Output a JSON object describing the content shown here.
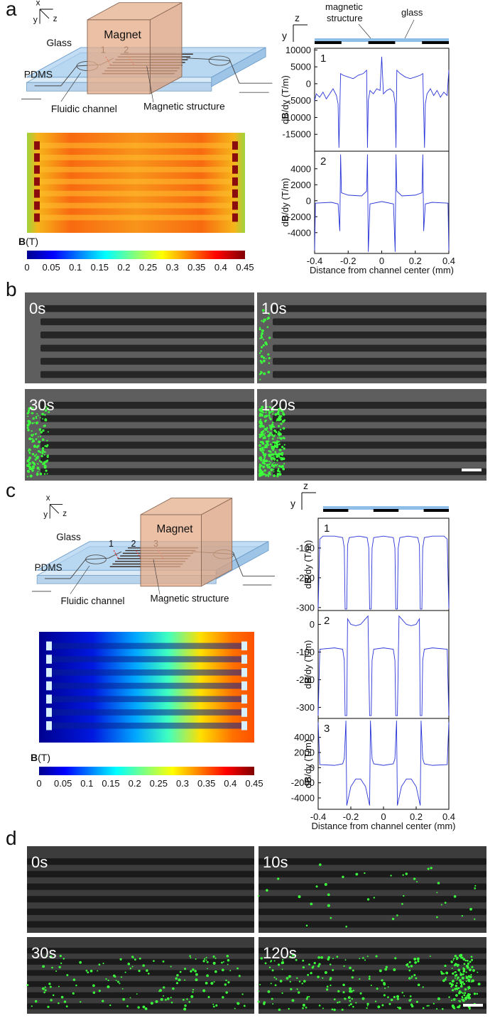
{
  "panel_labels": [
    "a",
    "b",
    "c",
    "d"
  ],
  "schematics": [
    {
      "axes": [
        "x",
        "y",
        "z"
      ],
      "labels": [
        "Magnet",
        "Glass",
        "PDMS",
        "Fluidic channel",
        "Magnetic structure"
      ],
      "points": [
        "1",
        "2"
      ]
    },
    {
      "axes": [
        "x",
        "y",
        "z"
      ],
      "labels": [
        "Magnet",
        "Glass",
        "PDMS",
        "Fluidic channel",
        "Magnetic structure"
      ],
      "points": [
        "1",
        "2",
        "3"
      ]
    }
  ],
  "colorbars": [
    {
      "label": [
        "B",
        "(T)"
      ],
      "range": [
        0,
        0.45
      ],
      "ticks": [
        0,
        0.05,
        0.1,
        0.15,
        0.2,
        0.25,
        0.3,
        0.35,
        0.4,
        0.45
      ]
    },
    {
      "label": [
        "B",
        "(T)"
      ],
      "range": [
        0,
        0.45
      ],
      "ticks": [
        0,
        0.05,
        0.1,
        0.15,
        0.2,
        0.25,
        0.3,
        0.35,
        0.4,
        0.45
      ]
    }
  ],
  "strip_legends": [
    {
      "axes": [
        "z",
        "y"
      ],
      "magnetic_structure": [
        "magnetic",
        "structure"
      ],
      "glass": "glass"
    },
    {
      "axes": [
        "z",
        "y"
      ]
    }
  ],
  "micrographs": [
    {
      "times": [
        "0s",
        "10s",
        "30s",
        "120s"
      ]
    },
    {
      "times": [
        "0s",
        "10s",
        "30s",
        "120s"
      ]
    }
  ],
  "chart_data": [
    {
      "type": "line",
      "label": "1",
      "x": [
        -0.4,
        -0.39,
        -0.37,
        -0.35,
        -0.33,
        -0.31,
        -0.29,
        -0.27,
        -0.26,
        -0.255,
        -0.25,
        -0.245,
        -0.23,
        -0.2,
        -0.17,
        -0.14,
        -0.11,
        -0.09,
        -0.085,
        -0.08,
        -0.07,
        -0.05,
        -0.03,
        -0.01,
        0,
        0.01,
        0.03,
        0.05,
        0.07,
        0.08,
        0.085,
        0.09,
        0.11,
        0.14,
        0.17,
        0.2,
        0.23,
        0.245,
        0.25,
        0.255,
        0.26,
        0.27,
        0.29,
        0.31,
        0.33,
        0.35,
        0.37,
        0.39,
        0.4
      ],
      "series": [
        {
          "color": "#2a35d8",
          "values": [
            -5000,
            -3000,
            -4000,
            -2500,
            -4500,
            -3000,
            -1500,
            -3500,
            -6000,
            -19000,
            -8000,
            3000,
            2500,
            2000,
            1500,
            2500,
            3000,
            4000,
            -19000,
            -5000,
            -2000,
            -3000,
            -1500,
            -2000,
            8000,
            -3000,
            -2000,
            -1500,
            -2500,
            -6000,
            -19000,
            4000,
            3000,
            2000,
            1500,
            2000,
            2500,
            3000,
            -8000,
            -19000,
            -6000,
            -3000,
            -1500,
            -3500,
            -2000,
            -4000,
            -2500,
            -3500,
            4000
          ]
        }
      ],
      "xlim": [
        -0.4,
        0.4
      ],
      "ylim": [
        -20000,
        10500
      ],
      "yticks": [
        10000,
        5000,
        0,
        -5000,
        -10000,
        -15000
      ],
      "ylabel": [
        "d",
        "B",
        "/dy (T/m)"
      ]
    },
    {
      "type": "line",
      "label": "2",
      "x": [
        -0.4,
        -0.395,
        -0.3,
        -0.26,
        -0.25,
        -0.245,
        -0.24,
        -0.2,
        -0.12,
        -0.09,
        -0.085,
        -0.08,
        -0.07,
        0,
        0.07,
        0.08,
        0.085,
        0.09,
        0.12,
        0.2,
        0.24,
        0.245,
        0.25,
        0.26,
        0.3,
        0.395,
        0.4
      ],
      "series": [
        {
          "color": "#2a35d8",
          "values": [
            -6400,
            -300,
            -200,
            -400,
            -3800,
            5800,
            1000,
            700,
            600,
            1200,
            5800,
            -6400,
            -400,
            -100,
            -400,
            -6400,
            5800,
            1200,
            600,
            700,
            1000,
            5800,
            -3800,
            -400,
            -200,
            -300,
            -6400
          ]
        }
      ],
      "xlim": [
        -0.4,
        0.4
      ],
      "ylim": [
        -6600,
        6200
      ],
      "yticks": [
        4000,
        2000,
        0,
        -2000,
        -4000
      ],
      "ylabel": [
        "d",
        "B",
        "/dy (T/m)"
      ],
      "xticks": [
        -0.4,
        -0.2,
        0,
        0.2,
        0.4
      ],
      "xlabel": "Distance from channel center (mm)"
    },
    {
      "type": "line",
      "label": "1",
      "x": [
        -0.4,
        -0.39,
        -0.37,
        -0.3,
        -0.25,
        -0.24,
        -0.235,
        -0.225,
        -0.22,
        -0.21,
        -0.15,
        -0.1,
        -0.09,
        -0.085,
        -0.075,
        -0.07,
        -0.06,
        0,
        0.06,
        0.07,
        0.075,
        0.085,
        0.09,
        0.1,
        0.15,
        0.21,
        0.22,
        0.225,
        0.235,
        0.24,
        0.25,
        0.3,
        0.37,
        0.39,
        0.4
      ],
      "series": [
        {
          "color": "#2a35d8",
          "values": [
            -305,
            -70,
            -60,
            -60,
            -65,
            -100,
            -305,
            -305,
            -90,
            -65,
            -60,
            -65,
            -100,
            -305,
            -305,
            -100,
            -65,
            -60,
            -65,
            -100,
            -305,
            -305,
            -100,
            -65,
            -60,
            -65,
            -90,
            -305,
            -305,
            -100,
            -65,
            -60,
            -60,
            -70,
            -305
          ]
        }
      ],
      "xlim": [
        -0.4,
        0.4
      ],
      "ylim": [
        -310,
        0
      ],
      "yticks": [
        -100,
        -200,
        -300
      ],
      "ylabel": [
        "d",
        "B",
        "/dy (T/m)"
      ]
    },
    {
      "type": "line",
      "label": "2",
      "x": [
        -0.4,
        -0.39,
        -0.3,
        -0.25,
        -0.24,
        -0.235,
        -0.225,
        -0.22,
        -0.2,
        -0.17,
        -0.14,
        -0.11,
        -0.095,
        -0.085,
        -0.075,
        -0.07,
        -0.06,
        0,
        0.06,
        0.07,
        0.075,
        0.085,
        0.095,
        0.11,
        0.14,
        0.17,
        0.2,
        0.22,
        0.225,
        0.235,
        0.24,
        0.25,
        0.3,
        0.39,
        0.4
      ],
      "series": [
        {
          "color": "#2a35d8",
          "values": [
            -330,
            -90,
            -85,
            -90,
            -130,
            -330,
            -330,
            20,
            0,
            -5,
            0,
            20,
            30,
            -330,
            -330,
            -130,
            -90,
            -85,
            -90,
            -130,
            -330,
            -330,
            30,
            20,
            0,
            -5,
            0,
            20,
            -330,
            -330,
            -130,
            -90,
            -85,
            -90,
            -330
          ]
        }
      ],
      "xlim": [
        -0.4,
        0.4
      ],
      "ylim": [
        -340,
        50
      ],
      "yticks": [
        0,
        -100,
        -200,
        -300
      ],
      "ylabel": [
        "d",
        "B",
        "/dy (T/m)"
      ]
    },
    {
      "type": "line",
      "label": "3",
      "x": [
        -0.4,
        -0.39,
        -0.3,
        -0.25,
        -0.24,
        -0.23,
        -0.225,
        -0.2,
        -0.17,
        -0.14,
        -0.11,
        -0.085,
        -0.08,
        -0.07,
        -0.06,
        0,
        0.06,
        0.07,
        0.08,
        0.085,
        0.11,
        0.14,
        0.17,
        0.2,
        0.225,
        0.23,
        0.24,
        0.25,
        0.3,
        0.39,
        0.4
      ],
      "series": [
        {
          "color": "#2a35d8",
          "values": [
            6000,
            400,
            300,
            500,
            1200,
            6200,
            -5000,
            -2500,
            -1500,
            -1500,
            -2500,
            -5000,
            6200,
            1200,
            500,
            300,
            500,
            1200,
            6200,
            -5000,
            -2500,
            -1500,
            -1500,
            -2500,
            -5000,
            6200,
            1200,
            500,
            300,
            400,
            6000
          ]
        }
      ],
      "xlim": [
        -0.4,
        0.4
      ],
      "ylim": [
        -5500,
        6500
      ],
      "yticks": [
        4000,
        2000,
        0,
        -2000,
        -4000
      ],
      "ylabel": [
        "d",
        "B",
        "/dy (T/m)"
      ],
      "xticks": [
        -0.4,
        -0.2,
        0,
        0.2,
        0.4
      ],
      "xlabel": "Distance from channel center (mm)"
    }
  ]
}
